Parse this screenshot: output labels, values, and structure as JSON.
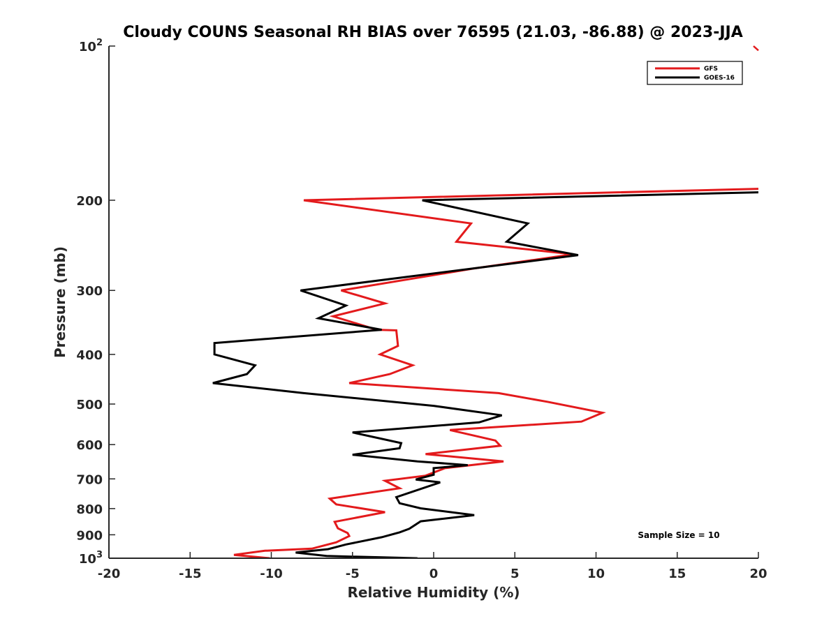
{
  "chart_data": {
    "type": "line",
    "title": "Cloudy COUNS Seasonal RH BIAS over 76595 (21.03, -86.88) @ 2023-JJA",
    "xlabel": "Relative Humidity (%)",
    "ylabel": "Pressure (mb)",
    "xlim": [
      -20,
      20
    ],
    "ylim": [
      100,
      1000
    ],
    "yscale": "log",
    "y_reversed": true,
    "x_ticks": [
      -20,
      -15,
      -10,
      -5,
      0,
      5,
      10,
      15,
      20
    ],
    "x_tick_labels": [
      "-20",
      "-15",
      "-10",
      "-5",
      "0",
      "5",
      "10",
      "15",
      "20"
    ],
    "y_ticks": [
      100,
      200,
      300,
      400,
      500,
      600,
      700,
      800,
      900,
      1000
    ],
    "y_tick_labels": [
      {
        "base": "10",
        "sup": "2"
      },
      {
        "base": "200",
        "sup": ""
      },
      {
        "base": "300",
        "sup": ""
      },
      {
        "base": "400",
        "sup": ""
      },
      {
        "base": "500",
        "sup": ""
      },
      {
        "base": "600",
        "sup": ""
      },
      {
        "base": "700",
        "sup": ""
      },
      {
        "base": "800",
        "sup": ""
      },
      {
        "base": "900",
        "sup": ""
      },
      {
        "base": "10",
        "sup": "3"
      }
    ],
    "legend_position": "top-right",
    "annotation": "Sample Size = 10",
    "series": [
      {
        "name": "GFS",
        "color": "#e31a1c",
        "points": [
          [
            20,
            190
          ],
          [
            -8,
            200
          ],
          [
            2.3,
            222
          ],
          [
            1.4,
            241
          ],
          [
            8.6,
            255
          ],
          [
            2.4,
            272
          ],
          [
            -5.7,
            300
          ],
          [
            -3,
            318
          ],
          [
            -6.2,
            337
          ],
          [
            -3.5,
            358
          ],
          [
            -2.3,
            359
          ],
          [
            -2.2,
            385
          ],
          [
            -3.3,
            400
          ],
          [
            -1.3,
            420
          ],
          [
            -2.7,
            437
          ],
          [
            -5.2,
            455
          ],
          [
            4,
            476
          ],
          [
            7,
            495
          ],
          [
            10.4,
            520
          ],
          [
            9.1,
            541
          ],
          [
            1,
            562
          ],
          [
            3.8,
            589
          ],
          [
            4.1,
            603
          ],
          [
            -0.5,
            626
          ],
          [
            4.3,
            647
          ],
          [
            0.7,
            667
          ],
          [
            -0.5,
            690
          ],
          [
            -3,
            706
          ],
          [
            -2.1,
            730
          ],
          [
            -6.4,
            765
          ],
          [
            -6,
            785
          ],
          [
            -3,
            813
          ],
          [
            -6.1,
            849
          ],
          [
            -5.9,
            874
          ],
          [
            -5.3,
            893
          ],
          [
            -5.2,
            905
          ],
          [
            -6,
            931
          ],
          [
            -7.5,
            958
          ],
          [
            -10.4,
            967
          ],
          [
            -12.3,
            985
          ],
          [
            -10.1,
            1000
          ]
        ]
      },
      {
        "name": "GOES-16",
        "color": "#000000",
        "points": [
          [
            20,
            193
          ],
          [
            -0.7,
            200
          ],
          [
            5.8,
            222
          ],
          [
            4.5,
            241
          ],
          [
            8.9,
            256
          ],
          [
            -8.2,
            300
          ],
          [
            -5.4,
            321
          ],
          [
            -7.1,
            340
          ],
          [
            -3.2,
            358
          ],
          [
            -13.5,
            380
          ],
          [
            -13.5,
            400
          ],
          [
            -11,
            420
          ],
          [
            -11.5,
            437
          ],
          [
            -13.6,
            455
          ],
          [
            -8,
            476
          ],
          [
            0,
            504
          ],
          [
            4.2,
            526
          ],
          [
            2.8,
            543
          ],
          [
            -5,
            568
          ],
          [
            -2,
            596
          ],
          [
            -2.1,
            610
          ],
          [
            -5,
            628
          ],
          [
            -1,
            647
          ],
          [
            2.1,
            658
          ],
          [
            0,
            667
          ],
          [
            0,
            687
          ],
          [
            -1.1,
            702
          ],
          [
            0.4,
            711
          ],
          [
            -2.3,
            760
          ],
          [
            -2.1,
            781
          ],
          [
            -0.8,
            799
          ],
          [
            2.5,
            824
          ],
          [
            -0.8,
            847
          ],
          [
            -1.5,
            876
          ],
          [
            -2.1,
            890
          ],
          [
            -3.2,
            910
          ],
          [
            -5.4,
            940
          ],
          [
            -6.5,
            960
          ],
          [
            -8.5,
            975
          ],
          [
            -6.6,
            990
          ],
          [
            -1,
            1000
          ]
        ]
      }
    ],
    "extra_marks": [
      {
        "name": "gfs-clipped-tick",
        "color": "#e31a1c",
        "points": [
          [
            19.7,
            100
          ],
          [
            20,
            102
          ]
        ]
      }
    ]
  }
}
